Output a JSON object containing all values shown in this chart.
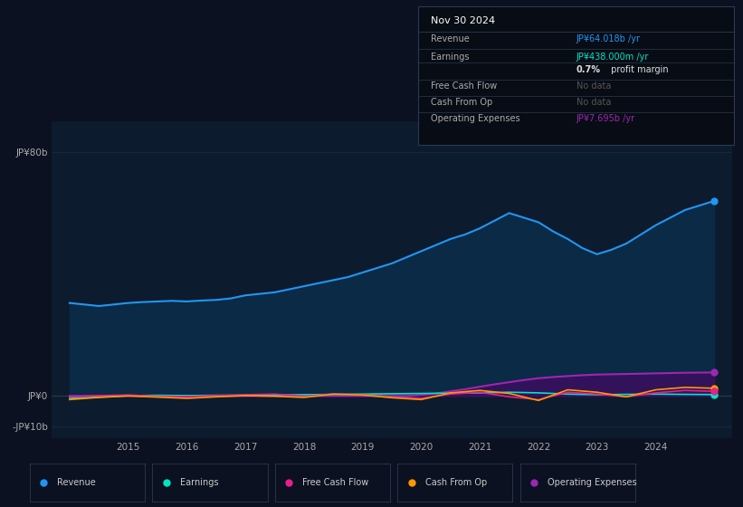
{
  "background_color": "#0b1120",
  "chart_bg_color": "#0d1b2e",
  "chart_left_bg": "#090e1a",
  "title_box_bg": "#080c14",
  "ylim": [
    -14,
    90
  ],
  "ytick_positions": [
    -10,
    0,
    80
  ],
  "ytick_labels": [
    "-JP¥10b",
    "JP¥0",
    "JP¥80b"
  ],
  "xlim_start": 2013.7,
  "xlim_end": 2025.3,
  "xticks": [
    2015,
    2016,
    2017,
    2018,
    2019,
    2020,
    2021,
    2022,
    2023,
    2024
  ],
  "legend_items": [
    {
      "label": "Revenue",
      "color": "#2196f3"
    },
    {
      "label": "Earnings",
      "color": "#00e5c8"
    },
    {
      "label": "Free Cash Flow",
      "color": "#e91e8c"
    },
    {
      "label": "Cash From Op",
      "color": "#ff9800"
    },
    {
      "label": "Operating Expenses",
      "color": "#9c27b0"
    }
  ],
  "tooltip": {
    "title": "Nov 30 2024",
    "rows": [
      {
        "label": "Revenue",
        "value": "JP¥64.018b /yr",
        "value_color": "#2196f3"
      },
      {
        "label": "Earnings",
        "value": "JP¥438.000m /yr",
        "value_color": "#00e5c8"
      },
      {
        "label": "",
        "value2a": "0.7%",
        "value2b": " profit margin",
        "value_color": "#dddddd"
      },
      {
        "label": "Free Cash Flow",
        "value": "No data",
        "value_color": "#555555"
      },
      {
        "label": "Cash From Op",
        "value": "No data",
        "value_color": "#555555"
      },
      {
        "label": "Operating Expenses",
        "value": "JP¥7.695b /yr",
        "value_color": "#9c27b0"
      }
    ]
  },
  "series": {
    "revenue": {
      "line_color": "#2196f3",
      "fill_color": "#0a2a45",
      "x": [
        2014.0,
        2014.25,
        2014.5,
        2014.75,
        2015.0,
        2015.25,
        2015.5,
        2015.75,
        2016.0,
        2016.25,
        2016.5,
        2016.75,
        2017.0,
        2017.25,
        2017.5,
        2017.75,
        2018.0,
        2018.25,
        2018.5,
        2018.75,
        2019.0,
        2019.25,
        2019.5,
        2019.75,
        2020.0,
        2020.25,
        2020.5,
        2020.75,
        2021.0,
        2021.25,
        2021.5,
        2021.75,
        2022.0,
        2022.25,
        2022.5,
        2022.75,
        2023.0,
        2023.25,
        2023.5,
        2023.75,
        2024.0,
        2024.25,
        2024.5,
        2024.75,
        2025.0
      ],
      "y": [
        30.5,
        30.0,
        29.5,
        30.0,
        30.5,
        30.8,
        31.0,
        31.2,
        31.0,
        31.3,
        31.5,
        32.0,
        33.0,
        33.5,
        34.0,
        35.0,
        36.0,
        37.0,
        38.0,
        39.0,
        40.5,
        42.0,
        43.5,
        45.5,
        47.5,
        49.5,
        51.5,
        53.0,
        55.0,
        57.5,
        60.0,
        58.5,
        57.0,
        54.0,
        51.5,
        48.5,
        46.5,
        48.0,
        50.0,
        53.0,
        56.0,
        58.5,
        61.0,
        62.5,
        64.0
      ]
    },
    "operating_expenses": {
      "line_color": "#9c27b0",
      "fill_color": "#3a1060",
      "x": [
        2014.0,
        2019.5,
        2019.75,
        2020.0,
        2020.25,
        2020.5,
        2020.75,
        2021.0,
        2021.25,
        2021.5,
        2021.75,
        2022.0,
        2022.25,
        2022.5,
        2022.75,
        2023.0,
        2023.25,
        2023.5,
        2023.75,
        2024.0,
        2024.25,
        2024.5,
        2024.75,
        2025.0
      ],
      "y": [
        0.0,
        0.0,
        0.0,
        0.3,
        0.8,
        1.5,
        2.2,
        3.0,
        3.8,
        4.5,
        5.2,
        5.8,
        6.2,
        6.5,
        6.8,
        7.0,
        7.1,
        7.2,
        7.3,
        7.4,
        7.5,
        7.6,
        7.65,
        7.695
      ]
    },
    "earnings": {
      "line_color": "#00e5c8",
      "x": [
        2014.0,
        2014.5,
        2015.0,
        2015.5,
        2016.0,
        2016.5,
        2017.0,
        2017.5,
        2018.0,
        2018.5,
        2019.0,
        2019.5,
        2020.0,
        2020.5,
        2021.0,
        2021.5,
        2022.0,
        2022.5,
        2023.0,
        2023.5,
        2024.0,
        2024.5,
        2025.0
      ],
      "y": [
        -0.8,
        -0.4,
        0.1,
        0.2,
        0.1,
        0.2,
        0.2,
        0.3,
        0.4,
        0.5,
        0.6,
        0.7,
        0.8,
        0.9,
        1.0,
        1.2,
        1.0,
        0.6,
        0.4,
        0.5,
        0.6,
        0.5,
        0.44
      ]
    },
    "free_cash_flow": {
      "line_color": "#e91e8c",
      "x": [
        2014.0,
        2014.5,
        2015.0,
        2015.5,
        2016.0,
        2016.5,
        2017.0,
        2017.5,
        2018.0,
        2018.5,
        2019.0,
        2019.5,
        2020.0,
        2020.5,
        2021.0,
        2021.5,
        2022.0,
        2022.5,
        2023.0,
        2023.5,
        2024.0,
        2024.5,
        2025.0
      ],
      "y": [
        -0.3,
        0.1,
        0.3,
        -0.1,
        -0.2,
        0.1,
        0.4,
        0.6,
        -0.1,
        0.6,
        0.4,
        -0.3,
        -0.8,
        0.6,
        1.2,
        -0.3,
        -1.2,
        1.2,
        0.6,
        -0.3,
        1.0,
        1.8,
        1.5
      ]
    },
    "cash_from_op": {
      "line_color": "#ff9800",
      "x": [
        2014.0,
        2014.5,
        2015.0,
        2015.5,
        2016.0,
        2016.5,
        2017.0,
        2017.5,
        2018.0,
        2018.5,
        2019.0,
        2019.5,
        2020.0,
        2020.5,
        2021.0,
        2021.5,
        2022.0,
        2022.5,
        2023.0,
        2023.5,
        2024.0,
        2024.5,
        2025.0
      ],
      "y": [
        -1.2,
        -0.5,
        0.0,
        -0.4,
        -0.8,
        -0.3,
        0.1,
        -0.1,
        -0.5,
        0.6,
        0.3,
        -0.6,
        -1.2,
        1.0,
        1.8,
        0.8,
        -1.5,
        2.0,
        1.2,
        -0.3,
        2.0,
        2.8,
        2.5
      ]
    }
  }
}
